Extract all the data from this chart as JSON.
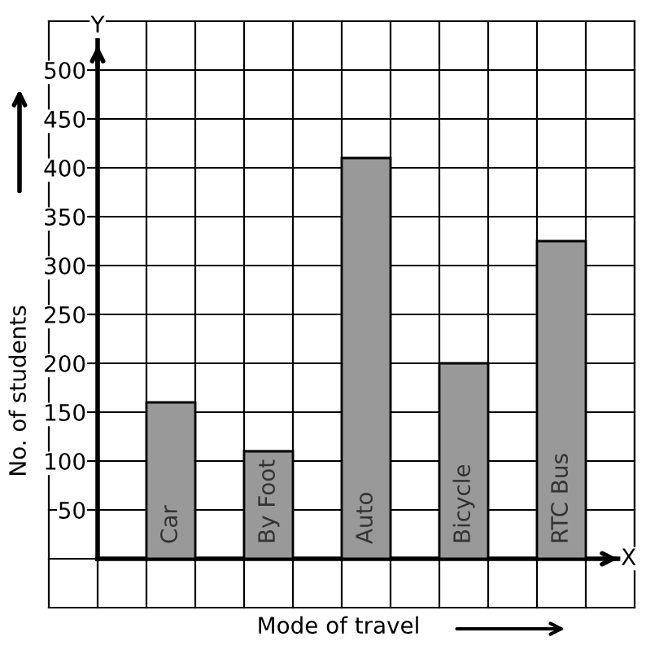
{
  "chart_data": {
    "type": "bar",
    "categories": [
      "Car",
      "By Foot",
      "Auto",
      "Bicycle",
      "RTC Bus"
    ],
    "values": [
      160,
      110,
      410,
      200,
      325
    ],
    "color": "#999999",
    "xlabel": "Mode of travel",
    "ylabel": "No. of students",
    "annotations": [
      "X",
      "Y"
    ],
    "ylim": [
      0,
      550
    ],
    "yticks": [
      50,
      100,
      150,
      200,
      250,
      300,
      350,
      400,
      450,
      500
    ],
    "grid": true
  }
}
